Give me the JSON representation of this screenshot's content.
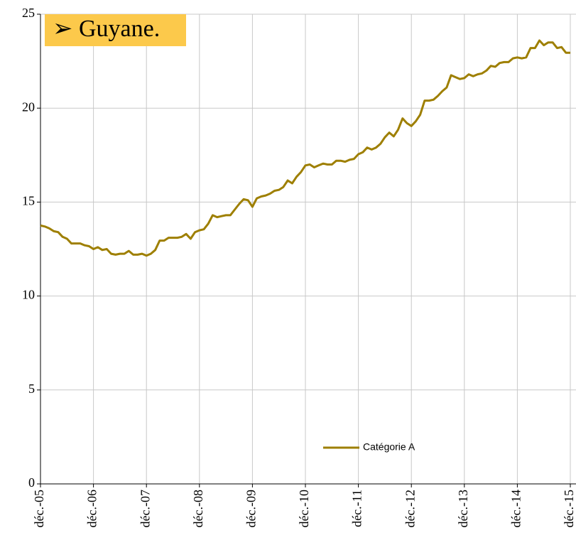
{
  "chart_data": {
    "type": "line",
    "title": "➢ Guyane.",
    "categories": [
      "déc.-05",
      null,
      null,
      null,
      null,
      null,
      null,
      null,
      null,
      null,
      null,
      null,
      "déc.-06",
      null,
      null,
      null,
      null,
      null,
      null,
      null,
      null,
      null,
      null,
      null,
      "déc.-07",
      null,
      null,
      null,
      null,
      null,
      null,
      null,
      null,
      null,
      null,
      null,
      "déc.-08",
      null,
      null,
      null,
      null,
      null,
      null,
      null,
      null,
      null,
      null,
      null,
      "déc.-09",
      null,
      null,
      null,
      null,
      null,
      null,
      null,
      null,
      null,
      null,
      null,
      "déc.-10",
      null,
      null,
      null,
      null,
      null,
      null,
      null,
      null,
      null,
      null,
      null,
      "déc.-11",
      null,
      null,
      null,
      null,
      null,
      null,
      null,
      null,
      null,
      null,
      null,
      "déc.-12",
      null,
      null,
      null,
      null,
      null,
      null,
      null,
      null,
      null,
      null,
      null,
      "déc.-13",
      null,
      null,
      null,
      null,
      null,
      null,
      null,
      null,
      null,
      null,
      null,
      "déc.-14",
      null,
      null,
      null,
      null,
      null,
      null,
      null,
      null,
      null,
      null,
      null,
      "déc.-15"
    ],
    "series": [
      {
        "name": "Catégorie A",
        "color": "#9e7f00",
        "values": [
          13.75,
          13.7,
          13.6,
          13.45,
          13.4,
          13.15,
          13.05,
          12.8,
          12.8,
          12.8,
          12.7,
          12.65,
          12.5,
          12.6,
          12.45,
          12.5,
          12.25,
          12.2,
          12.25,
          12.25,
          12.4,
          12.2,
          12.2,
          12.25,
          12.15,
          12.25,
          12.45,
          12.95,
          12.95,
          13.1,
          13.1,
          13.1,
          13.15,
          13.3,
          13.05,
          13.4,
          13.5,
          13.55,
          13.85,
          14.3,
          14.2,
          14.25,
          14.3,
          14.3,
          14.6,
          14.9,
          15.15,
          15.1,
          14.75,
          15.2,
          15.3,
          15.35,
          15.45,
          15.6,
          15.65,
          15.8,
          16.15,
          16.0,
          16.35,
          16.6,
          16.95,
          17.0,
          16.85,
          16.95,
          17.05,
          17.0,
          17.0,
          17.2,
          17.2,
          17.15,
          17.25,
          17.3,
          17.55,
          17.65,
          17.9,
          17.8,
          17.9,
          18.1,
          18.45,
          18.7,
          18.5,
          18.85,
          19.45,
          19.2,
          19.05,
          19.3,
          19.65,
          20.4,
          20.4,
          20.45,
          20.65,
          20.9,
          21.1,
          21.75,
          21.65,
          21.55,
          21.6,
          21.8,
          21.7,
          21.8,
          21.85,
          22.0,
          22.25,
          22.2,
          22.4,
          22.45,
          22.45,
          22.65,
          22.7,
          22.65,
          22.7,
          23.2,
          23.2,
          23.6,
          23.35,
          23.5,
          23.5,
          23.2,
          23.25,
          22.95,
          22.95
        ]
      }
    ],
    "ylim": [
      0,
      25
    ],
    "yticks": [
      0,
      5,
      10,
      15,
      20,
      25
    ],
    "grid": true
  }
}
